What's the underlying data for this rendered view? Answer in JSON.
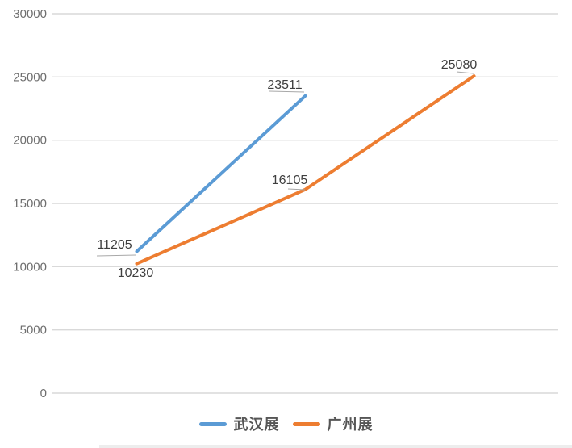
{
  "chart_data": {
    "type": "line",
    "title": "",
    "xlabel": "",
    "ylabel": "",
    "categories": [
      "",
      "",
      ""
    ],
    "series": [
      {
        "name": "武汉展",
        "color": "#5B9BD5",
        "values": [
          11205,
          23511,
          null
        ]
      },
      {
        "name": "广州展",
        "color": "#ED7D31",
        "values": [
          10230,
          16105,
          25080
        ]
      }
    ],
    "ylim": [
      0,
      30000
    ],
    "ytick_interval": 5000,
    "ytick_labels": [
      "0",
      "5000",
      "10000",
      "15000",
      "20000",
      "25000",
      "30000"
    ],
    "grid": "horizontal gridlines only, no axis lines, no x tick labels",
    "legend_position": "bottom-center",
    "colors": {
      "grid_line": "#d9d9d9",
      "leader_line": "#a8a8a8",
      "axis_text": "#6e6e6e",
      "data_label_text": "#3f3f3f",
      "legend_text": "#565656",
      "background": "#ffffff"
    }
  }
}
